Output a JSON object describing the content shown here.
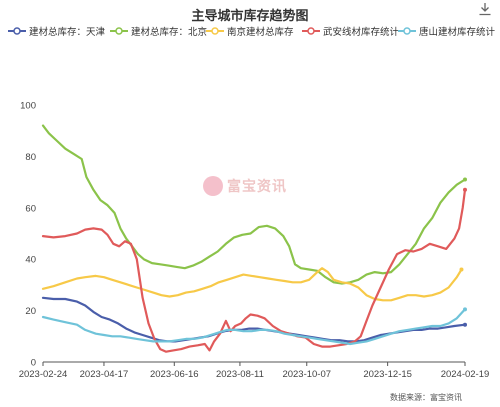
{
  "title": "主导城市库存趋势图",
  "source": "数据来源：富宝资讯",
  "watermark": "富宝资讯",
  "chart_data": {
    "type": "line",
    "title": "主导城市库存趋势图",
    "ylim": [
      0,
      100
    ],
    "yticks": [
      0,
      20,
      40,
      60,
      80,
      100
    ],
    "xlim": [
      "2023-02-24",
      "2024-02-19"
    ],
    "xticks": [
      "2023-02-24",
      "2023-04-17",
      "2023-06-16",
      "2023-08-11",
      "2023-10-07",
      "2023-12-15",
      "2024-02-19"
    ],
    "grid": false,
    "legend": "top",
    "series": [
      {
        "name": "建材总库存：天津",
        "color": "#4a5eaa",
        "points": [
          [
            "2023-02-24",
            25
          ],
          [
            "2023-03-05",
            24.5
          ],
          [
            "2023-03-15",
            24.5
          ],
          [
            "2023-03-25",
            23.5
          ],
          [
            "2023-04-01",
            22
          ],
          [
            "2023-04-08",
            19.5
          ],
          [
            "2023-04-15",
            17.5
          ],
          [
            "2023-04-22",
            16.5
          ],
          [
            "2023-04-29",
            15
          ],
          [
            "2023-05-06",
            13
          ],
          [
            "2023-05-13",
            11.5
          ],
          [
            "2023-05-20",
            10.5
          ],
          [
            "2023-05-27",
            9.5
          ],
          [
            "2023-06-03",
            8.5
          ],
          [
            "2023-06-10",
            8
          ],
          [
            "2023-06-17",
            8
          ],
          [
            "2023-06-24",
            8.5
          ],
          [
            "2023-07-01",
            9
          ],
          [
            "2023-07-08",
            9.5
          ],
          [
            "2023-07-15",
            10
          ],
          [
            "2023-07-22",
            11
          ],
          [
            "2023-07-29",
            12
          ],
          [
            "2023-08-05",
            12.5
          ],
          [
            "2023-08-12",
            12.5
          ],
          [
            "2023-08-19",
            13
          ],
          [
            "2023-08-26",
            13
          ],
          [
            "2023-09-02",
            12.5
          ],
          [
            "2023-09-09",
            12
          ],
          [
            "2023-09-16",
            11.5
          ],
          [
            "2023-09-23",
            11
          ],
          [
            "2023-09-30",
            10.5
          ],
          [
            "2023-10-07",
            10
          ],
          [
            "2023-10-14",
            9.5
          ],
          [
            "2023-10-21",
            9
          ],
          [
            "2023-10-28",
            8.5
          ],
          [
            "2023-11-04",
            8.5
          ],
          [
            "2023-11-11",
            8
          ],
          [
            "2023-11-18",
            8
          ],
          [
            "2023-11-25",
            8.5
          ],
          [
            "2023-12-02",
            9.5
          ],
          [
            "2023-12-09",
            10.5
          ],
          [
            "2023-12-16",
            11
          ],
          [
            "2023-12-23",
            11.5
          ],
          [
            "2023-12-30",
            12
          ],
          [
            "2024-01-06",
            12.5
          ],
          [
            "2024-01-13",
            12.5
          ],
          [
            "2024-01-20",
            13
          ],
          [
            "2024-01-27",
            13
          ],
          [
            "2024-02-03",
            13.5
          ],
          [
            "2024-02-10",
            14
          ],
          [
            "2024-02-19",
            14.5
          ]
        ]
      },
      {
        "name": "建材总库存：北京",
        "color": "#8bc34a",
        "points": [
          [
            "2023-02-24",
            92
          ],
          [
            "2023-03-01",
            89
          ],
          [
            "2023-03-08",
            86
          ],
          [
            "2023-03-15",
            83
          ],
          [
            "2023-03-22",
            81
          ],
          [
            "2023-03-29",
            79
          ],
          [
            "2023-04-02",
            72
          ],
          [
            "2023-04-08",
            67
          ],
          [
            "2023-04-14",
            63
          ],
          [
            "2023-04-20",
            61
          ],
          [
            "2023-04-26",
            58
          ],
          [
            "2023-05-01",
            52
          ],
          [
            "2023-05-06",
            48
          ],
          [
            "2023-05-11",
            45
          ],
          [
            "2023-05-16",
            42
          ],
          [
            "2023-05-21",
            40
          ],
          [
            "2023-05-28",
            38.5
          ],
          [
            "2023-06-04",
            38
          ],
          [
            "2023-06-11",
            37.5
          ],
          [
            "2023-06-18",
            37
          ],
          [
            "2023-06-25",
            36.5
          ],
          [
            "2023-07-02",
            37.5
          ],
          [
            "2023-07-09",
            39
          ],
          [
            "2023-07-16",
            41
          ],
          [
            "2023-07-23",
            43
          ],
          [
            "2023-07-30",
            46
          ],
          [
            "2023-08-06",
            48.5
          ],
          [
            "2023-08-13",
            49.5
          ],
          [
            "2023-08-20",
            50
          ],
          [
            "2023-08-27",
            52.5
          ],
          [
            "2023-09-03",
            53
          ],
          [
            "2023-09-10",
            52
          ],
          [
            "2023-09-17",
            49
          ],
          [
            "2023-09-22",
            45
          ],
          [
            "2023-09-27",
            38
          ],
          [
            "2023-10-02",
            36.5
          ],
          [
            "2023-10-09",
            36
          ],
          [
            "2023-10-16",
            35.5
          ],
          [
            "2023-10-23",
            33
          ],
          [
            "2023-10-30",
            31
          ],
          [
            "2023-11-06",
            30.5
          ],
          [
            "2023-11-13",
            31
          ],
          [
            "2023-11-20",
            32
          ],
          [
            "2023-11-27",
            34
          ],
          [
            "2023-12-04",
            35
          ],
          [
            "2023-12-11",
            34.5
          ],
          [
            "2023-12-18",
            35
          ],
          [
            "2023-12-25",
            38
          ],
          [
            "2024-01-01",
            42
          ],
          [
            "2024-01-08",
            46
          ],
          [
            "2024-01-15",
            52
          ],
          [
            "2024-01-22",
            56
          ],
          [
            "2024-01-29",
            62
          ],
          [
            "2024-02-05",
            66
          ],
          [
            "2024-02-12",
            69
          ],
          [
            "2024-02-19",
            71
          ]
        ]
      },
      {
        "name": "南京建材总库存",
        "color": "#f7c948",
        "points": [
          [
            "2023-02-24",
            28.5
          ],
          [
            "2023-03-05",
            29.5
          ],
          [
            "2023-03-15",
            31
          ],
          [
            "2023-03-25",
            32.5
          ],
          [
            "2023-04-01",
            33
          ],
          [
            "2023-04-10",
            33.5
          ],
          [
            "2023-04-17",
            33
          ],
          [
            "2023-04-24",
            32
          ],
          [
            "2023-05-01",
            31
          ],
          [
            "2023-05-08",
            30
          ],
          [
            "2023-05-15",
            29
          ],
          [
            "2023-05-22",
            28
          ],
          [
            "2023-05-29",
            27
          ],
          [
            "2023-06-05",
            26
          ],
          [
            "2023-06-12",
            25.5
          ],
          [
            "2023-06-19",
            26
          ],
          [
            "2023-06-26",
            27
          ],
          [
            "2023-07-03",
            27.5
          ],
          [
            "2023-07-10",
            28.5
          ],
          [
            "2023-07-17",
            29.5
          ],
          [
            "2023-07-24",
            31
          ],
          [
            "2023-07-31",
            32
          ],
          [
            "2023-08-07",
            33
          ],
          [
            "2023-08-14",
            34
          ],
          [
            "2023-08-21",
            33.5
          ],
          [
            "2023-08-28",
            33
          ],
          [
            "2023-09-04",
            32.5
          ],
          [
            "2023-09-11",
            32
          ],
          [
            "2023-09-18",
            31.5
          ],
          [
            "2023-09-25",
            31
          ],
          [
            "2023-10-02",
            31
          ],
          [
            "2023-10-09",
            32
          ],
          [
            "2023-10-16",
            35
          ],
          [
            "2023-10-20",
            36.5
          ],
          [
            "2023-10-25",
            35
          ],
          [
            "2023-10-30",
            32
          ],
          [
            "2023-11-06",
            31
          ],
          [
            "2023-11-13",
            30.5
          ],
          [
            "2023-11-20",
            29
          ],
          [
            "2023-11-27",
            26
          ],
          [
            "2023-12-04",
            24.5
          ],
          [
            "2023-12-11",
            24
          ],
          [
            "2023-12-18",
            24
          ],
          [
            "2023-12-25",
            25
          ],
          [
            "2024-01-01",
            26
          ],
          [
            "2024-01-08",
            26
          ],
          [
            "2024-01-15",
            25.5
          ],
          [
            "2024-01-22",
            26
          ],
          [
            "2024-01-29",
            27
          ],
          [
            "2024-02-05",
            29
          ],
          [
            "2024-02-12",
            33
          ],
          [
            "2024-02-16",
            36
          ]
        ]
      },
      {
        "name": "武安线材库存统计",
        "color": "#e05a5a",
        "points": [
          [
            "2023-02-24",
            49
          ],
          [
            "2023-03-05",
            48.5
          ],
          [
            "2023-03-15",
            49
          ],
          [
            "2023-03-25",
            50
          ],
          [
            "2023-04-01",
            51.5
          ],
          [
            "2023-04-08",
            52
          ],
          [
            "2023-04-15",
            51.5
          ],
          [
            "2023-04-20",
            49.5
          ],
          [
            "2023-04-25",
            46
          ],
          [
            "2023-04-30",
            45
          ],
          [
            "2023-05-05",
            47
          ],
          [
            "2023-05-10",
            46
          ],
          [
            "2023-05-15",
            40
          ],
          [
            "2023-05-20",
            25
          ],
          [
            "2023-05-25",
            15
          ],
          [
            "2023-05-30",
            9
          ],
          [
            "2023-06-04",
            5
          ],
          [
            "2023-06-09",
            4
          ],
          [
            "2023-06-15",
            4.5
          ],
          [
            "2023-06-22",
            5
          ],
          [
            "2023-06-29",
            6
          ],
          [
            "2023-07-06",
            6.5
          ],
          [
            "2023-07-12",
            7
          ],
          [
            "2023-07-16",
            4.5
          ],
          [
            "2023-07-20",
            8
          ],
          [
            "2023-07-25",
            11
          ],
          [
            "2023-07-30",
            16
          ],
          [
            "2023-08-03",
            12
          ],
          [
            "2023-08-07",
            14
          ],
          [
            "2023-08-12",
            15
          ],
          [
            "2023-08-16",
            17
          ],
          [
            "2023-08-20",
            18.5
          ],
          [
            "2023-08-26",
            18
          ],
          [
            "2023-09-01",
            17
          ],
          [
            "2023-09-08",
            14
          ],
          [
            "2023-09-15",
            12
          ],
          [
            "2023-09-22",
            11
          ],
          [
            "2023-09-29",
            10
          ],
          [
            "2023-10-06",
            9.5
          ],
          [
            "2023-10-13",
            7
          ],
          [
            "2023-10-20",
            6
          ],
          [
            "2023-10-27",
            6
          ],
          [
            "2023-11-03",
            6.5
          ],
          [
            "2023-11-10",
            7
          ],
          [
            "2023-11-17",
            8
          ],
          [
            "2023-11-22",
            10
          ],
          [
            "2023-11-27",
            16
          ],
          [
            "2023-12-02",
            22
          ],
          [
            "2023-12-09",
            29
          ],
          [
            "2023-12-16",
            36
          ],
          [
            "2023-12-23",
            42
          ],
          [
            "2023-12-30",
            43.5
          ],
          [
            "2024-01-06",
            43
          ],
          [
            "2024-01-13",
            44
          ],
          [
            "2024-01-20",
            46
          ],
          [
            "2024-01-27",
            45
          ],
          [
            "2024-02-03",
            44
          ],
          [
            "2024-02-10",
            48
          ],
          [
            "2024-02-14",
            52
          ],
          [
            "2024-02-17",
            60
          ],
          [
            "2024-02-19",
            67
          ]
        ]
      },
      {
        "name": "唐山建材库存统计",
        "color": "#6fc3d9",
        "points": [
          [
            "2023-02-24",
            17.5
          ],
          [
            "2023-03-05",
            16.5
          ],
          [
            "2023-03-15",
            15.5
          ],
          [
            "2023-03-25",
            14.5
          ],
          [
            "2023-04-01",
            12.5
          ],
          [
            "2023-04-10",
            11
          ],
          [
            "2023-04-17",
            10.5
          ],
          [
            "2023-04-24",
            10
          ],
          [
            "2023-05-01",
            10
          ],
          [
            "2023-05-08",
            9.5
          ],
          [
            "2023-05-15",
            9
          ],
          [
            "2023-05-22",
            8.5
          ],
          [
            "2023-05-29",
            8
          ],
          [
            "2023-06-05",
            8
          ],
          [
            "2023-06-12",
            8
          ],
          [
            "2023-06-19",
            8.5
          ],
          [
            "2023-06-26",
            9
          ],
          [
            "2023-07-03",
            9
          ],
          [
            "2023-07-10",
            9.5
          ],
          [
            "2023-07-17",
            10.5
          ],
          [
            "2023-07-24",
            11.5
          ],
          [
            "2023-07-31",
            12.5
          ],
          [
            "2023-08-07",
            12.5
          ],
          [
            "2023-08-14",
            12
          ],
          [
            "2023-08-21",
            12
          ],
          [
            "2023-08-28",
            12.5
          ],
          [
            "2023-09-04",
            12.5
          ],
          [
            "2023-09-11",
            12
          ],
          [
            "2023-09-18",
            11
          ],
          [
            "2023-09-25",
            10.5
          ],
          [
            "2023-10-02",
            10
          ],
          [
            "2023-10-09",
            9.5
          ],
          [
            "2023-10-16",
            9
          ],
          [
            "2023-10-23",
            8.5
          ],
          [
            "2023-10-30",
            8
          ],
          [
            "2023-11-06",
            7.5
          ],
          [
            "2023-11-13",
            7
          ],
          [
            "2023-11-20",
            7.5
          ],
          [
            "2023-11-27",
            8
          ],
          [
            "2023-12-04",
            9
          ],
          [
            "2023-12-11",
            10
          ],
          [
            "2023-12-18",
            11
          ],
          [
            "2023-12-25",
            12
          ],
          [
            "2024-01-01",
            12.5
          ],
          [
            "2024-01-08",
            13
          ],
          [
            "2024-01-15",
            13.5
          ],
          [
            "2024-01-22",
            14
          ],
          [
            "2024-01-29",
            14
          ],
          [
            "2024-02-05",
            15
          ],
          [
            "2024-02-12",
            17
          ],
          [
            "2024-02-19",
            20.5
          ]
        ]
      }
    ]
  }
}
